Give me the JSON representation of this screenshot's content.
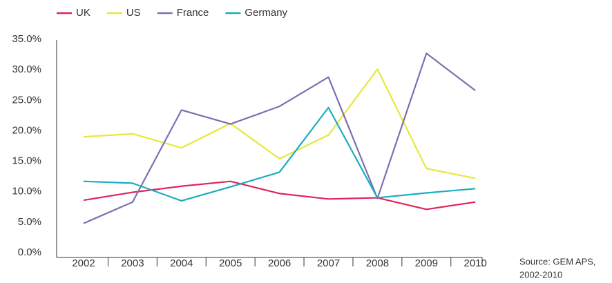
{
  "chart_data": {
    "type": "line",
    "categories": [
      "2002",
      "2003",
      "2004",
      "2005",
      "2006",
      "2007",
      "2008",
      "2009",
      "2010"
    ],
    "series": [
      {
        "name": "UK",
        "color": "#e0245e",
        "values": [
          8.6,
          9.9,
          10.9,
          11.7,
          9.7,
          8.8,
          9.0,
          7.1,
          8.3
        ]
      },
      {
        "name": "US",
        "color": "#e6e83a",
        "values": [
          19.0,
          19.5,
          17.2,
          21.2,
          15.4,
          19.3,
          30.1,
          13.8,
          12.2
        ]
      },
      {
        "name": "France",
        "color": "#7b6fb0",
        "values": [
          4.8,
          8.3,
          23.4,
          21.1,
          24.0,
          28.8,
          8.9,
          32.7,
          26.6
        ]
      },
      {
        "name": "Germany",
        "color": "#1aacbf",
        "values": [
          11.7,
          11.4,
          8.5,
          10.8,
          13.2,
          23.8,
          9.0,
          9.8,
          10.5
        ]
      }
    ],
    "ylim": [
      0,
      35
    ],
    "yticks": [
      {
        "value": 0,
        "label": "0.0%"
      },
      {
        "value": 5,
        "label": "5.0%"
      },
      {
        "value": 10,
        "label": "10.0%"
      },
      {
        "value": 15,
        "label": "15.0%"
      },
      {
        "value": 20,
        "label": "20.0%"
      },
      {
        "value": 25,
        "label": "25.0%"
      },
      {
        "value": 30,
        "label": "30.0%"
      },
      {
        "value": 35,
        "label": "35.0%"
      }
    ],
    "grid": false,
    "legend": "top-left",
    "source": [
      "Source: GEM APS,",
      "2002-2010"
    ]
  }
}
